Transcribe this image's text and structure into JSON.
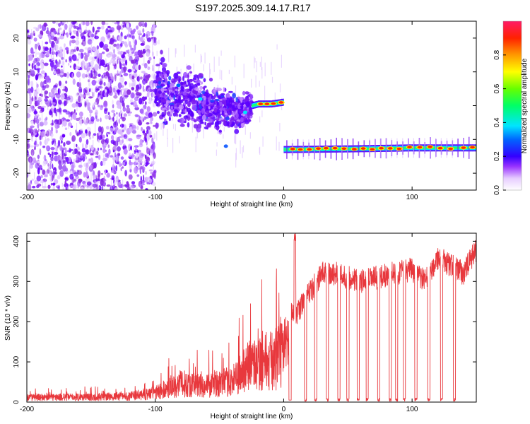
{
  "chart_data": [
    {
      "type": "heatmap",
      "title": "S197.2025.309.14.17.R17",
      "xlabel": "Height of straight line (km)",
      "ylabel": "Frequency (Hz)",
      "xlim": [
        -200,
        150
      ],
      "ylim": [
        -25,
        25
      ],
      "xticks": [
        -200,
        -100,
        0,
        100
      ],
      "yticks": [
        -20,
        -10,
        0,
        10,
        20
      ],
      "colorbar": {
        "label": "Normalized spectral amplitude",
        "range": [
          0,
          1
        ],
        "ticks": [
          "0.0",
          "0.2",
          "0.4",
          "0.6",
          "0.8"
        ],
        "tick_values": [
          0,
          0.2,
          0.4,
          0.6,
          0.8
        ]
      },
      "signal_track": [
        {
          "x": -100,
          "y": 5
        },
        {
          "x": -90,
          "y": 4
        },
        {
          "x": -80,
          "y": 3
        },
        {
          "x": -70,
          "y": 2
        },
        {
          "x": -60,
          "y": 0
        },
        {
          "x": -50,
          "y": -1
        },
        {
          "x": -40,
          "y": -2
        },
        {
          "x": -30,
          "y": -2
        },
        {
          "x": -25,
          "y": 0
        },
        {
          "x": -20,
          "y": 0.5
        },
        {
          "x": -10,
          "y": 0.5
        },
        {
          "x": -1,
          "y": 1
        },
        {
          "x": 0,
          "y": -13
        },
        {
          "x": 50,
          "y": -12.8
        },
        {
          "x": 100,
          "y": -12.5
        },
        {
          "x": 150,
          "y": -12.5
        }
      ],
      "regions": [
        {
          "x_from": -200,
          "x_to": -100,
          "description": "broadband noise"
        },
        {
          "x_from": -100,
          "x_to": -25,
          "description": "diffuse signal"
        },
        {
          "x_from": -25,
          "x_to": 0,
          "description": "carrier near 0 Hz"
        },
        {
          "x_from": 0,
          "x_to": 150,
          "description": "carrier near -13 Hz"
        }
      ]
    },
    {
      "type": "line",
      "xlabel": "Height of straight line (km)",
      "ylabel": "SNR (10 * v/v)",
      "xlim": [
        -200,
        150
      ],
      "ylim": [
        0,
        420
      ],
      "xticks": [
        -200,
        -100,
        0,
        100
      ],
      "yticks": [
        0,
        100,
        200,
        300,
        400
      ],
      "color": "#e8383d",
      "envelope": [
        {
          "x": -200,
          "y": 20
        },
        {
          "x": -150,
          "y": 22
        },
        {
          "x": -120,
          "y": 25
        },
        {
          "x": -100,
          "y": 40
        },
        {
          "x": -80,
          "y": 80
        },
        {
          "x": -60,
          "y": 70
        },
        {
          "x": -40,
          "y": 90
        },
        {
          "x": -30,
          "y": 140
        },
        {
          "x": -20,
          "y": 190
        },
        {
          "x": -10,
          "y": 175
        },
        {
          "x": 0,
          "y": 210
        },
        {
          "x": 10,
          "y": 220
        },
        {
          "x": 20,
          "y": 270
        },
        {
          "x": 30,
          "y": 320
        },
        {
          "x": 40,
          "y": 320
        },
        {
          "x": 60,
          "y": 300
        },
        {
          "x": 80,
          "y": 315
        },
        {
          "x": 100,
          "y": 330
        },
        {
          "x": 110,
          "y": 300
        },
        {
          "x": 120,
          "y": 360
        },
        {
          "x": 130,
          "y": 340
        },
        {
          "x": 140,
          "y": 320
        },
        {
          "x": 150,
          "y": 380
        }
      ],
      "dropouts_x": [
        17,
        25,
        34,
        43,
        50,
        58,
        65,
        74,
        83,
        88,
        94,
        103,
        113,
        123,
        133
      ]
    }
  ]
}
